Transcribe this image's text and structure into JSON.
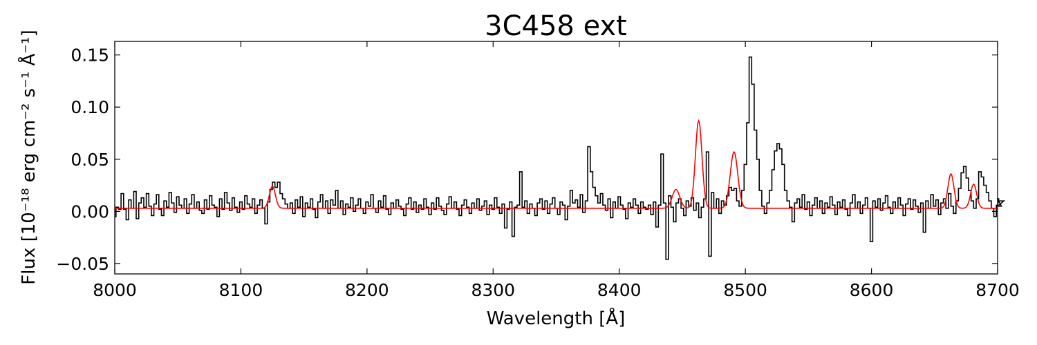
{
  "chart_data": {
    "type": "line",
    "title": "3C458 ext",
    "xlabel": "Wavelength [Å]",
    "ylabel": "Flux [10⁻¹⁸ erg cm⁻² s⁻¹ Å⁻¹]",
    "xlim": [
      8000,
      8700
    ],
    "ylim": [
      -0.06,
      0.163
    ],
    "xticks": [
      8000,
      8100,
      8200,
      8300,
      8400,
      8500,
      8600,
      8700
    ],
    "xtick_labels": [
      "8000",
      "8100",
      "8200",
      "8300",
      "8400",
      "8500",
      "8600",
      "8700"
    ],
    "yticks": [
      -0.05,
      0.0,
      0.05,
      0.1,
      0.15
    ],
    "ytick_labels": [
      "−0.05",
      "0.00",
      "0.05",
      "0.10",
      "0.15"
    ],
    "grid": false,
    "legend": "none",
    "series": [
      {
        "style": "steps",
        "color": "#000000",
        "x_start": 8000,
        "x_step": 2,
        "values": [
          -0.005,
          0.004,
          0.002,
          0.017,
          0.002,
          -0.008,
          0.011,
          0.003,
          0.019,
          -0.007,
          0.008,
          0.013,
          0.004,
          0.017,
          0.005,
          -0.004,
          0.007,
          0.016,
          0.002,
          -0.004,
          0.01,
          0.004,
          0.018,
          0.008,
          -0.001,
          0.014,
          0.006,
          0.003,
          0.012,
          -0.002,
          0.007,
          0.016,
          0.003,
          0.009,
          0.001,
          -0.002,
          0.011,
          0.002,
          0.015,
          0.006,
          0.004,
          -0.005,
          0.012,
          0.002,
          0.018,
          0.008,
          0.001,
          0.013,
          0.004,
          -0.001,
          0.009,
          0.002,
          0.015,
          0.007,
          0.004,
          0.012,
          -0.002,
          0.006,
          0.011,
          0.003,
          -0.012,
          0.009,
          0.021,
          0.028,
          0.023,
          0.028,
          0.017,
          0.012,
          0.007,
          0.003,
          0.008,
          -0.002,
          0.011,
          0.004,
          0.014,
          -0.005,
          0.008,
          0.004,
          0.012,
          0.002,
          -0.006,
          0.009,
          0.016,
          0.003,
          0.01,
          -0.002,
          0.011,
          0.006,
          0.02,
          0.003,
          0.01,
          -0.003,
          0.007,
          0.004,
          0.013,
          0.0,
          0.006,
          0.012,
          0.003,
          -0.002,
          0.009,
          0.005,
          0.016,
          0.003,
          -0.001,
          0.01,
          0.004,
          0.015,
          0.002,
          -0.003,
          0.008,
          0.003,
          0.011,
          0.005,
          0.002,
          -0.004,
          0.007,
          0.013,
          0.002,
          0.009,
          -0.001,
          0.006,
          0.002,
          0.012,
          0.004,
          -0.003,
          0.008,
          0.002,
          0.013,
          0.005,
          0.001,
          -0.003,
          0.007,
          0.014,
          0.003,
          0.009,
          0.002,
          -0.004,
          0.006,
          0.011,
          0.004,
          -0.002,
          0.008,
          0.003,
          0.012,
          0.001,
          0.005,
          0.01,
          -0.003,
          0.006,
          0.002,
          0.013,
          0.004,
          -0.002,
          0.007,
          -0.016,
          0.002,
          0.009,
          -0.024,
          0.004,
          0.006,
          0.038,
          0.004,
          0.01,
          -0.002,
          0.007,
          0.003,
          -0.004,
          0.008,
          0.012,
          0.002,
          0.01,
          -0.002,
          0.007,
          0.013,
          0.003,
          -0.003,
          0.009,
          0.006,
          -0.008,
          0.005,
          0.02,
          0.008,
          0.011,
          0.004,
          0.016,
          -0.001,
          0.01,
          0.062,
          0.038,
          0.023,
          0.015,
          0.008,
          0.017,
          0.006,
          0.001,
          0.012,
          -0.006,
          0.009,
          0.003,
          0.014,
          0.006,
          0.002,
          -0.007,
          0.008,
          0.004,
          0.012,
          0.006,
          -0.002,
          0.009,
          0.004,
          0.002,
          0.006,
          -0.003,
          0.009,
          -0.015,
          0.006,
          0.055,
          0.008,
          -0.046,
          0.015,
          0.004,
          -0.01,
          0.008,
          0.012,
          0.003,
          -0.004,
          0.01,
          0.005,
          0.013,
          0.001,
          0.008,
          -0.006,
          0.004,
          0.012,
          0.057,
          -0.043,
          0.018,
          0.003,
          0.012,
          -0.002,
          0.01,
          0.006,
          0.015,
          0.023,
          0.02,
          0.022,
          0.01,
          0.005,
          0.02,
          0.045,
          0.085,
          0.148,
          0.122,
          0.078,
          0.05,
          0.02,
          0.005,
          -0.002,
          0.008,
          0.02,
          0.04,
          0.058,
          0.065,
          0.06,
          0.045,
          0.02,
          0.01,
          0.004,
          -0.01,
          0.008,
          0.012,
          0.004,
          0.016,
          0.002,
          0.009,
          -0.004,
          0.006,
          0.013,
          0.003,
          0.01,
          -0.002,
          0.008,
          0.004,
          0.014,
          0.006,
          -0.003,
          0.009,
          0.004,
          0.011,
          0.002,
          -0.004,
          0.008,
          0.016,
          0.003,
          0.009,
          -0.002,
          0.006,
          0.013,
          0.003,
          -0.029,
          0.01,
          0.004,
          0.012,
          0.001,
          0.008,
          0.015,
          0.004,
          -0.002,
          0.009,
          0.003,
          0.013,
          0.006,
          -0.004,
          0.007,
          0.012,
          0.002,
          0.011,
          0.005,
          -0.001,
          0.008,
          -0.02,
          0.01,
          0.003,
          0.016,
          0.005,
          0.011,
          -0.003,
          0.008,
          0.012,
          0.003,
          0.017,
          0.005,
          -0.002,
          0.01,
          0.022,
          0.037,
          0.043,
          0.032,
          0.02,
          0.01,
          0.003,
          0.012,
          0.038,
          0.033,
          0.025,
          0.018,
          0.01,
          0.003,
          -0.005,
          0.006,
          0.012,
          0.005,
          0.01
        ]
      },
      {
        "style": "line",
        "color": "#ff0000",
        "name": "",
        "continuum": 0.003,
        "gaussians": [
          {
            "center": 8125,
            "amp": 0.021,
            "sigma": 2.4
          },
          {
            "center": 8445,
            "amp": 0.018,
            "sigma": 3.0
          },
          {
            "center": 8463,
            "amp": 0.084,
            "sigma": 2.6
          },
          {
            "center": 8491,
            "amp": 0.054,
            "sigma": 3.0
          },
          {
            "center": 8663,
            "amp": 0.033,
            "sigma": 2.4
          },
          {
            "center": 8681,
            "amp": 0.023,
            "sigma": 2.4
          }
        ]
      }
    ]
  }
}
